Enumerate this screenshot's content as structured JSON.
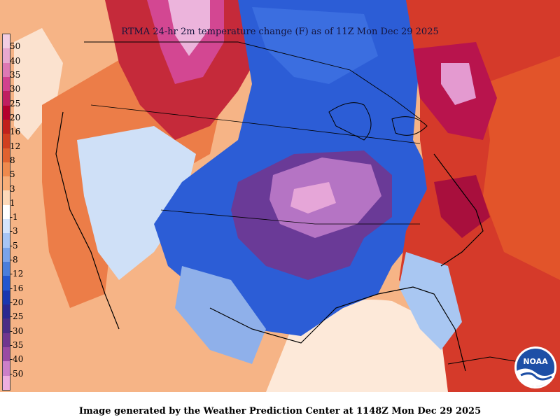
{
  "map": {
    "title": "RTMA 24-hr 2m temperature change (F) as of 11Z Mon Dec 29 2025",
    "footer": "Image generated by the Weather Prediction Center at 1148Z Mon Dec 29 2025",
    "logo_text": "NOAA"
  },
  "legend": {
    "labels": [
      "50",
      "40",
      "35",
      "30",
      "25",
      "20",
      "16",
      "12",
      "8",
      "5",
      "3",
      "1",
      "-1",
      "-3",
      "-5",
      "-8",
      "-12",
      "-16",
      "-20",
      "-25",
      "-30",
      "-35",
      "-40",
      "-50"
    ],
    "colors": [
      "#f2cde2",
      "#e8a8cf",
      "#de78b4",
      "#d2408e",
      "#c01e61",
      "#b4002d",
      "#c1211b",
      "#d13f1f",
      "#e0622f",
      "#ee8a4d",
      "#f7ae78",
      "#fdd9b8",
      "#ffffff",
      "#d5e4fb",
      "#a8c5f4",
      "#7aa3ea",
      "#4b7edc",
      "#2456cf",
      "#1a37b0",
      "#2b2890",
      "#4b2c85",
      "#71368f",
      "#9a4aa3",
      "#cc7fc8",
      "#eeaedf"
    ]
  }
}
